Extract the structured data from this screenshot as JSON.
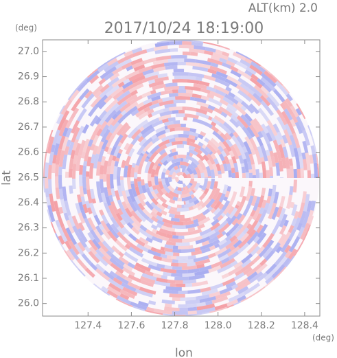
{
  "chart_data": {
    "type": "ppi",
    "title": "2017/10/24 18:19:00",
    "altitude_label": "ALT(km) 2.0",
    "x_label": "lon",
    "y_label": "lat",
    "x_unit": "(deg)",
    "y_unit": "(deg)",
    "xlim": [
      127.19,
      128.47
    ],
    "ylim": [
      25.95,
      27.046
    ],
    "xticks": [
      {
        "value": 127.4,
        "label": "127.4"
      },
      {
        "value": 127.6,
        "label": "127.6"
      },
      {
        "value": 127.8,
        "label": "127.8"
      },
      {
        "value": 128.0,
        "label": "128.0"
      },
      {
        "value": 128.2,
        "label": "128.2"
      },
      {
        "value": 128.4,
        "label": "128.4"
      }
    ],
    "yticks": [
      {
        "value": 26.0,
        "label": "26.0"
      },
      {
        "value": 26.1,
        "label": "26.1"
      },
      {
        "value": 26.2,
        "label": "26.2"
      },
      {
        "value": 26.3,
        "label": "26.3"
      },
      {
        "value": 26.4,
        "label": "26.4"
      },
      {
        "value": 26.5,
        "label": "26.5"
      },
      {
        "value": 26.6,
        "label": "26.6"
      },
      {
        "value": 26.7,
        "label": "26.7"
      },
      {
        "value": 26.8,
        "label": "26.8"
      },
      {
        "value": 26.9,
        "label": "26.9"
      },
      {
        "value": 27.0,
        "label": "27.0"
      }
    ],
    "colors": {
      "positive": "#f4a0a6",
      "negative": "#a8acf0"
    }
  }
}
